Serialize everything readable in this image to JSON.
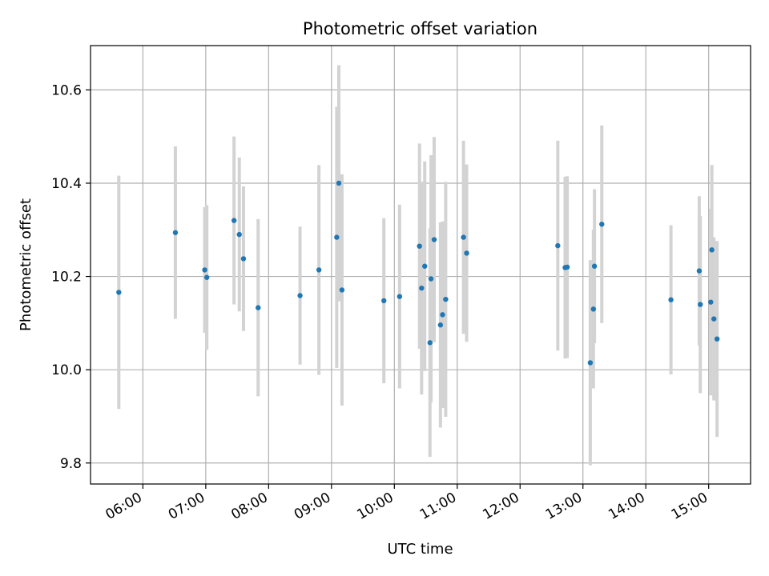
{
  "chart_data": {
    "type": "scatter",
    "title": "Photometric offset variation",
    "xlabel": "UTC time",
    "ylabel": "Photometric offset",
    "x_ticks": [
      "06:00",
      "07:00",
      "08:00",
      "09:00",
      "10:00",
      "11:00",
      "12:00",
      "13:00",
      "14:00",
      "15:00"
    ],
    "y_ticks": [
      "9.8",
      "10.0",
      "10.2",
      "10.4",
      "10.6"
    ],
    "xlim": [
      "05:10",
      "15:40"
    ],
    "ylim": [
      9.755,
      10.695
    ],
    "grid": true,
    "legend": "none",
    "colors": {
      "marker": "#1f77b4",
      "errorbar": "#d3d3d3",
      "grid": "#b0b0b0"
    },
    "points": [
      {
        "x": "05:37",
        "y": 10.166,
        "err": 0.25
      },
      {
        "x": "06:31",
        "y": 10.294,
        "err": 0.185
      },
      {
        "x": "06:59",
        "y": 10.214,
        "err": 0.135
      },
      {
        "x": "07:01",
        "y": 10.198,
        "err": 0.155
      },
      {
        "x": "07:27",
        "y": 10.32,
        "err": 0.18
      },
      {
        "x": "07:32",
        "y": 10.29,
        "err": 0.165
      },
      {
        "x": "07:36",
        "y": 10.238,
        "err": 0.155
      },
      {
        "x": "07:50",
        "y": 10.133,
        "err": 0.19
      },
      {
        "x": "08:30",
        "y": 10.159,
        "err": 0.148
      },
      {
        "x": "08:48",
        "y": 10.214,
        "err": 0.225
      },
      {
        "x": "09:05",
        "y": 10.284,
        "err": 0.28
      },
      {
        "x": "09:07",
        "y": 10.4,
        "err": 0.253
      },
      {
        "x": "09:10",
        "y": 10.171,
        "err": 0.248
      },
      {
        "x": "09:50",
        "y": 10.148,
        "err": 0.177
      },
      {
        "x": "10:05",
        "y": 10.157,
        "err": 0.197
      },
      {
        "x": "10:24",
        "y": 10.265,
        "err": 0.22
      },
      {
        "x": "10:26",
        "y": 10.175,
        "err": 0.228
      },
      {
        "x": "10:29",
        "y": 10.222,
        "err": 0.225
      },
      {
        "x": "10:34",
        "y": 10.058,
        "err": 0.245
      },
      {
        "x": "10:35",
        "y": 10.195,
        "err": 0.265
      },
      {
        "x": "10:38",
        "y": 10.279,
        "err": 0.22
      },
      {
        "x": "10:44",
        "y": 10.096,
        "err": 0.22
      },
      {
        "x": "10:46",
        "y": 10.118,
        "err": 0.2
      },
      {
        "x": "10:49",
        "y": 10.151,
        "err": 0.252
      },
      {
        "x": "11:06",
        "y": 10.284,
        "err": 0.207
      },
      {
        "x": "11:09",
        "y": 10.25,
        "err": 0.19
      },
      {
        "x": "12:36",
        "y": 10.266,
        "err": 0.225
      },
      {
        "x": "12:43",
        "y": 10.219,
        "err": 0.195
      },
      {
        "x": "12:45",
        "y": 10.22,
        "err": 0.195
      },
      {
        "x": "13:07",
        "y": 10.015,
        "err": 0.22
      },
      {
        "x": "13:10",
        "y": 10.13,
        "err": 0.17
      },
      {
        "x": "13:11",
        "y": 10.222,
        "err": 0.165
      },
      {
        "x": "13:18",
        "y": 10.312,
        "err": 0.212
      },
      {
        "x": "14:24",
        "y": 10.15,
        "err": 0.16
      },
      {
        "x": "14:51",
        "y": 10.212,
        "err": 0.16
      },
      {
        "x": "14:52",
        "y": 10.14,
        "err": 0.19
      },
      {
        "x": "15:02",
        "y": 10.145,
        "err": 0.2
      },
      {
        "x": "15:03",
        "y": 10.257,
        "err": 0.182
      },
      {
        "x": "15:05",
        "y": 10.109,
        "err": 0.175
      },
      {
        "x": "15:08",
        "y": 10.066,
        "err": 0.21
      }
    ]
  }
}
